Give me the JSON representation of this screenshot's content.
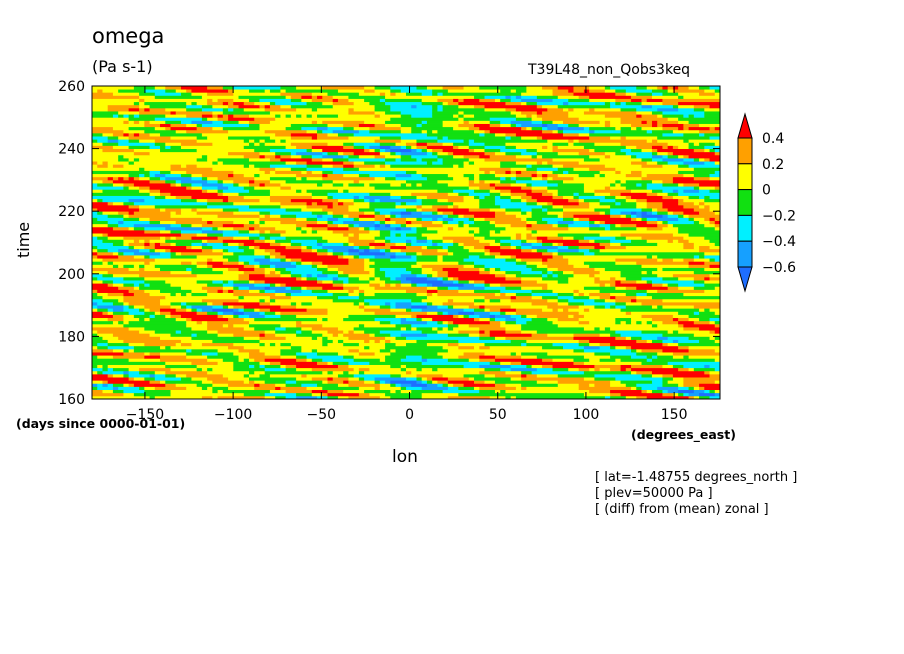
{
  "header": {
    "title": "omega",
    "units": "(Pa s-1)",
    "run_name": "T39L48_non_Qobs3keq"
  },
  "notes": [
    "[ lat=-1.48755 degrees_north ]",
    "[ plev=50000 Pa ]",
    "[ (diff) from (mean) zonal ]"
  ],
  "colors": {
    "below_-0.6": "#1e6eff",
    "-0.6_to_-0.4": "#16a0ff",
    "-0.4_to_-0.2": "#00f0ff",
    "-0.2_to_0": "#11e011",
    "0_to_0.2": "#ffff00",
    "0.2_to_0.4": "#ffa000",
    "above_0.4": "#ff0000"
  },
  "chart_data": {
    "type": "heatmap",
    "title": "omega",
    "units": "(Pa s-1)",
    "xlabel": "lon",
    "xunits": "(degrees_east)",
    "ylabel": "time",
    "yunits": "(days since 0000-01-01)",
    "xlim": [
      -180,
      176
    ],
    "ylim": [
      160,
      260
    ],
    "xticks": [
      -150,
      -100,
      -50,
      0,
      50,
      100,
      150
    ],
    "yticks": [
      160,
      180,
      200,
      220,
      240,
      260
    ],
    "colorbar": {
      "levels": [
        -0.6,
        -0.4,
        -0.2,
        0,
        0.2,
        0.4
      ],
      "labels": [
        "-0.6",
        "-0.4",
        "-0.2",
        "0",
        "0.2",
        "0.4"
      ],
      "colors": [
        "#1e6eff",
        "#16a0ff",
        "#00f0ff",
        "#11e011",
        "#ffff00",
        "#ffa000",
        "#ff0000"
      ],
      "extend": "both"
    },
    "field_description_values": {
      "dominant_range": [
        0,
        0.2
      ],
      "strong_ascent_band_lon": [
        -20,
        15
      ]
    }
  }
}
